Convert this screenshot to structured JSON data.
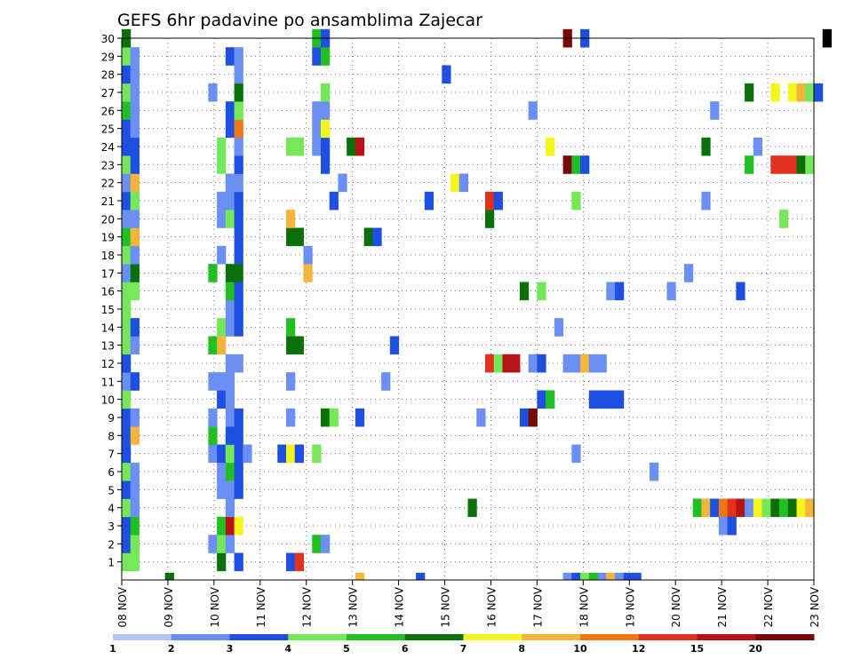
{
  "chart_data": {
    "type": "heatmap",
    "title": "GEFS 6hr padavine po ansamblima Zajecar",
    "xlabel": "",
    "ylabel": "",
    "x_ticks": [
      "08 NOV",
      "09 NOV",
      "10 NOV",
      "11 NOV",
      "12 NOV",
      "13 NOV",
      "14 NOV",
      "15 NOV",
      "16 NOV",
      "17 NOV",
      "18 NOV",
      "19 NOV",
      "20 NOV",
      "21 NOV",
      "22 NOV",
      "23 NOV"
    ],
    "y_ticks": [
      "1",
      "2",
      "3",
      "4",
      "5",
      "6",
      "7",
      "8",
      "9",
      "10",
      "11",
      "12",
      "13",
      "14",
      "15",
      "16",
      "17",
      "18",
      "19",
      "20",
      "21",
      "22",
      "23",
      "24",
      "25",
      "26",
      "27",
      "28",
      "29",
      "30"
    ],
    "xlim": [
      0,
      60
    ],
    "ylim": [
      0,
      30
    ],
    "grid": true,
    "legend": {
      "placement": "bottom",
      "labels": [
        "1",
        "2",
        "3",
        "4",
        "5",
        "6",
        "7",
        "8",
        "10",
        "12",
        "15",
        "20"
      ],
      "colors": [
        "#b4c8f5",
        "#6b8ff2",
        "#1e4fe0",
        "#75e85a",
        "#22bf22",
        "#0b700b",
        "#f5f51e",
        "#f5b43c",
        "#f07814",
        "#e0321e",
        "#b41414",
        "#780a0a"
      ]
    },
    "cells": [
      [
        0,
        0,
        3
      ],
      [
        0,
        1,
        2
      ],
      [
        0,
        2,
        2
      ],
      [
        0,
        3,
        3
      ],
      [
        0,
        4,
        2
      ],
      [
        0,
        5,
        3
      ],
      [
        0,
        6,
        2
      ],
      [
        0,
        7,
        2
      ],
      [
        0,
        8,
        2
      ],
      [
        0,
        9,
        3
      ],
      [
        0,
        10,
        1
      ],
      [
        0,
        11,
        2
      ],
      [
        0,
        12,
        3
      ],
      [
        0,
        13,
        3
      ],
      [
        0,
        14,
        3
      ],
      [
        0,
        15,
        3
      ],
      [
        0,
        16,
        1
      ],
      [
        0,
        17,
        3
      ],
      [
        0,
        18,
        4
      ],
      [
        0,
        19,
        1
      ],
      [
        0,
        20,
        2
      ],
      [
        0,
        21,
        1
      ],
      [
        0,
        22,
        3
      ],
      [
        0,
        23,
        2
      ],
      [
        0,
        24,
        2
      ],
      [
        0,
        25,
        4
      ],
      [
        0,
        26,
        3
      ],
      [
        0,
        27,
        2
      ],
      [
        0,
        28,
        3
      ],
      [
        0,
        29,
        5
      ],
      [
        1,
        0,
        3
      ],
      [
        1,
        1,
        3
      ],
      [
        1,
        2,
        4
      ],
      [
        1,
        3,
        1
      ],
      [
        1,
        4,
        1
      ],
      [
        1,
        5,
        1
      ],
      [
        1,
        7,
        7
      ],
      [
        1,
        8,
        1
      ],
      [
        1,
        10,
        2
      ],
      [
        1,
        12,
        1
      ],
      [
        1,
        13,
        2
      ],
      [
        1,
        15,
        3
      ],
      [
        1,
        16,
        5
      ],
      [
        1,
        17,
        1
      ],
      [
        1,
        18,
        7
      ],
      [
        1,
        19,
        1
      ],
      [
        1,
        20,
        3
      ],
      [
        1,
        21,
        7
      ],
      [
        1,
        22,
        2
      ],
      [
        1,
        23,
        2
      ],
      [
        1,
        24,
        1
      ],
      [
        1,
        25,
        1
      ],
      [
        1,
        26,
        1
      ],
      [
        1,
        27,
        1
      ],
      [
        1,
        28,
        1
      ],
      [
        5,
        -1,
        5
      ],
      [
        10,
        1,
        1
      ],
      [
        10,
        6,
        1
      ],
      [
        10,
        7,
        4
      ],
      [
        10,
        8,
        1
      ],
      [
        10,
        10,
        1
      ],
      [
        10,
        12,
        4
      ],
      [
        10,
        16,
        4
      ],
      [
        10,
        26,
        1
      ],
      [
        11,
        0,
        5
      ],
      [
        11,
        1,
        3
      ],
      [
        11,
        2,
        4
      ],
      [
        11,
        4,
        1
      ],
      [
        11,
        5,
        1
      ],
      [
        11,
        6,
        2
      ],
      [
        11,
        9,
        2
      ],
      [
        11,
        10,
        1
      ],
      [
        11,
        12,
        7
      ],
      [
        11,
        13,
        3
      ],
      [
        11,
        17,
        1
      ],
      [
        11,
        19,
        1
      ],
      [
        11,
        20,
        1
      ],
      [
        11,
        22,
        3
      ],
      [
        11,
        23,
        3
      ],
      [
        12,
        1,
        1
      ],
      [
        12,
        2,
        10
      ],
      [
        12,
        3,
        1
      ],
      [
        12,
        4,
        1
      ],
      [
        12,
        5,
        4
      ],
      [
        12,
        6,
        3
      ],
      [
        12,
        7,
        2
      ],
      [
        12,
        8,
        1
      ],
      [
        12,
        9,
        1
      ],
      [
        12,
        10,
        1
      ],
      [
        12,
        11,
        1
      ],
      [
        12,
        13,
        1
      ],
      [
        12,
        14,
        1
      ],
      [
        12,
        15,
        4
      ],
      [
        12,
        16,
        5
      ],
      [
        12,
        19,
        3
      ],
      [
        12,
        20,
        1
      ],
      [
        12,
        21,
        1
      ],
      [
        12,
        24,
        2
      ],
      [
        12,
        25,
        2
      ],
      [
        12,
        28,
        2
      ],
      [
        13,
        0,
        2
      ],
      [
        13,
        2,
        6
      ],
      [
        13,
        4,
        2
      ],
      [
        13,
        5,
        2
      ],
      [
        13,
        6,
        2
      ],
      [
        13,
        7,
        2
      ],
      [
        13,
        8,
        2
      ],
      [
        13,
        11,
        1
      ],
      [
        13,
        13,
        2
      ],
      [
        13,
        14,
        2
      ],
      [
        13,
        15,
        2
      ],
      [
        13,
        16,
        5
      ],
      [
        13,
        17,
        2
      ],
      [
        13,
        18,
        2
      ],
      [
        13,
        19,
        2
      ],
      [
        13,
        20,
        2
      ],
      [
        13,
        21,
        1
      ],
      [
        13,
        22,
        2
      ],
      [
        13,
        23,
        1
      ],
      [
        13,
        24,
        8
      ],
      [
        13,
        25,
        3
      ],
      [
        13,
        26,
        5
      ],
      [
        13,
        27,
        1
      ],
      [
        13,
        28,
        1
      ],
      [
        14,
        6,
        1
      ],
      [
        18,
        6,
        2
      ],
      [
        19,
        0,
        2
      ],
      [
        19,
        6,
        6
      ],
      [
        19,
        8,
        1
      ],
      [
        19,
        10,
        1
      ],
      [
        19,
        12,
        5
      ],
      [
        19,
        13,
        4
      ],
      [
        19,
        18,
        5
      ],
      [
        19,
        19,
        7
      ],
      [
        19,
        23,
        3
      ],
      [
        20,
        0,
        9
      ],
      [
        20,
        6,
        2
      ],
      [
        20,
        12,
        5
      ],
      [
        20,
        18,
        5
      ],
      [
        20,
        23,
        3
      ],
      [
        21,
        16,
        7
      ],
      [
        21,
        17,
        1
      ],
      [
        22,
        1,
        4
      ],
      [
        22,
        6,
        3
      ],
      [
        22,
        23,
        1
      ],
      [
        22,
        24,
        1
      ],
      [
        22,
        25,
        1
      ],
      [
        22,
        28,
        2
      ],
      [
        22,
        29,
        4
      ],
      [
        23,
        1,
        1
      ],
      [
        23,
        8,
        5
      ],
      [
        23,
        22,
        2
      ],
      [
        23,
        23,
        2
      ],
      [
        23,
        24,
        6
      ],
      [
        23,
        25,
        1
      ],
      [
        23,
        26,
        3
      ],
      [
        23,
        28,
        4
      ],
      [
        23,
        29,
        2
      ],
      [
        24,
        8,
        3
      ],
      [
        24,
        20,
        2
      ],
      [
        25,
        21,
        1
      ],
      [
        26,
        23,
        5
      ],
      [
        27,
        -1,
        7
      ],
      [
        27,
        8,
        2
      ],
      [
        27,
        23,
        10
      ],
      [
        28,
        18,
        5
      ],
      [
        29,
        18,
        2
      ],
      [
        30,
        10,
        1
      ],
      [
        31,
        12,
        2
      ],
      [
        34,
        -1,
        2
      ],
      [
        35,
        20,
        2
      ],
      [
        37,
        27,
        2
      ],
      [
        38,
        21,
        6
      ],
      [
        39,
        21,
        1
      ],
      [
        40,
        3,
        5
      ],
      [
        41,
        8,
        1
      ],
      [
        42,
        11,
        9
      ],
      [
        42,
        19,
        5
      ],
      [
        42,
        20,
        9
      ],
      [
        43,
        11,
        3
      ],
      [
        43,
        20,
        2
      ],
      [
        44,
        11,
        10
      ],
      [
        45,
        11,
        10
      ],
      [
        46,
        8,
        2
      ],
      [
        46,
        15,
        5
      ],
      [
        47,
        8,
        11
      ],
      [
        47,
        11,
        1
      ],
      [
        47,
        25,
        1
      ],
      [
        48,
        9,
        2
      ],
      [
        48,
        11,
        2
      ],
      [
        48,
        15,
        3
      ],
      [
        49,
        9,
        4
      ],
      [
        49,
        23,
        6
      ],
      [
        50,
        13,
        1
      ],
      [
        51,
        -1,
        1
      ],
      [
        51,
        11,
        1
      ],
      [
        51,
        22,
        11
      ],
      [
        51,
        29,
        11
      ],
      [
        52,
        -1,
        2
      ],
      [
        52,
        6,
        1
      ],
      [
        52,
        11,
        1
      ],
      [
        52,
        20,
        3
      ],
      [
        52,
        22,
        4
      ],
      [
        53,
        -1,
        3
      ],
      [
        53,
        11,
        7
      ],
      [
        53,
        22,
        2
      ],
      [
        53,
        29,
        2
      ],
      [
        54,
        -1,
        4
      ],
      [
        54,
        9,
        2
      ],
      [
        54,
        11,
        1
      ],
      [
        55,
        -1,
        1
      ],
      [
        55,
        9,
        2
      ],
      [
        55,
        11,
        1
      ],
      [
        56,
        -1,
        7
      ],
      [
        56,
        9,
        2
      ],
      [
        56,
        15,
        1
      ],
      [
        57,
        -1,
        1
      ],
      [
        57,
        9,
        2
      ],
      [
        57,
        15,
        2
      ],
      [
        58,
        -1,
        2
      ],
      [
        59,
        -1,
        2
      ],
      [
        61,
        5,
        1
      ],
      [
        63,
        15,
        1
      ],
      [
        65,
        16,
        1
      ],
      [
        66,
        3,
        4
      ],
      [
        67,
        3,
        7
      ],
      [
        67,
        20,
        1
      ],
      [
        67,
        23,
        5
      ],
      [
        68,
        3,
        2
      ],
      [
        68,
        25,
        1
      ],
      [
        69,
        3,
        8
      ],
      [
        69,
        2,
        1
      ],
      [
        70,
        3,
        9
      ],
      [
        70,
        2,
        2
      ],
      [
        71,
        3,
        10
      ],
      [
        71,
        15,
        2
      ],
      [
        72,
        3,
        1
      ],
      [
        72,
        22,
        4
      ],
      [
        72,
        26,
        5
      ],
      [
        73,
        3,
        6
      ],
      [
        73,
        23,
        1
      ],
      [
        74,
        3,
        3
      ],
      [
        75,
        3,
        5
      ],
      [
        75,
        22,
        9
      ],
      [
        75,
        26,
        6
      ],
      [
        76,
        3,
        4
      ],
      [
        76,
        19,
        3
      ],
      [
        76,
        22,
        9
      ],
      [
        77,
        3,
        5
      ],
      [
        77,
        22,
        9
      ],
      [
        77,
        26,
        6
      ],
      [
        78,
        3,
        6
      ],
      [
        78,
        22,
        5
      ],
      [
        78,
        26,
        7
      ],
      [
        79,
        3,
        7
      ],
      [
        79,
        22,
        3
      ],
      [
        79,
        26,
        3
      ],
      [
        80,
        26,
        2
      ],
      [
        81,
        29,
        12
      ]
    ]
  }
}
